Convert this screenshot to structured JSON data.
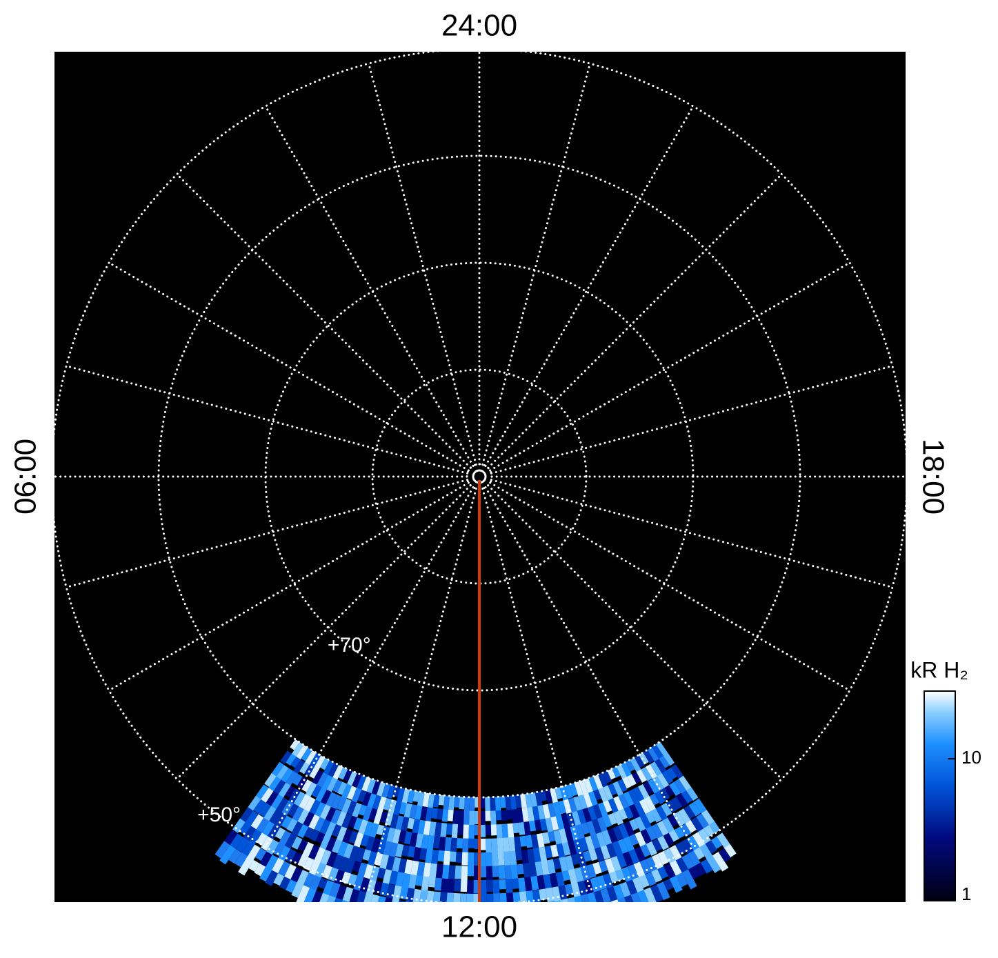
{
  "chart_data": {
    "type": "polar",
    "time_labels": {
      "top": "24:00",
      "left": "06:00",
      "right": "18:00",
      "bottom": "12:00"
    },
    "rings": [
      80,
      70,
      60,
      50
    ],
    "ring_labels": [
      {
        "value": 70,
        "label": "+70°"
      },
      {
        "value": 50,
        "label": "+50°"
      }
    ],
    "colorbar": {
      "title": "kR H₂",
      "log": true,
      "lim": [
        1,
        30
      ],
      "ticks": [
        1,
        10
      ]
    }
  }
}
